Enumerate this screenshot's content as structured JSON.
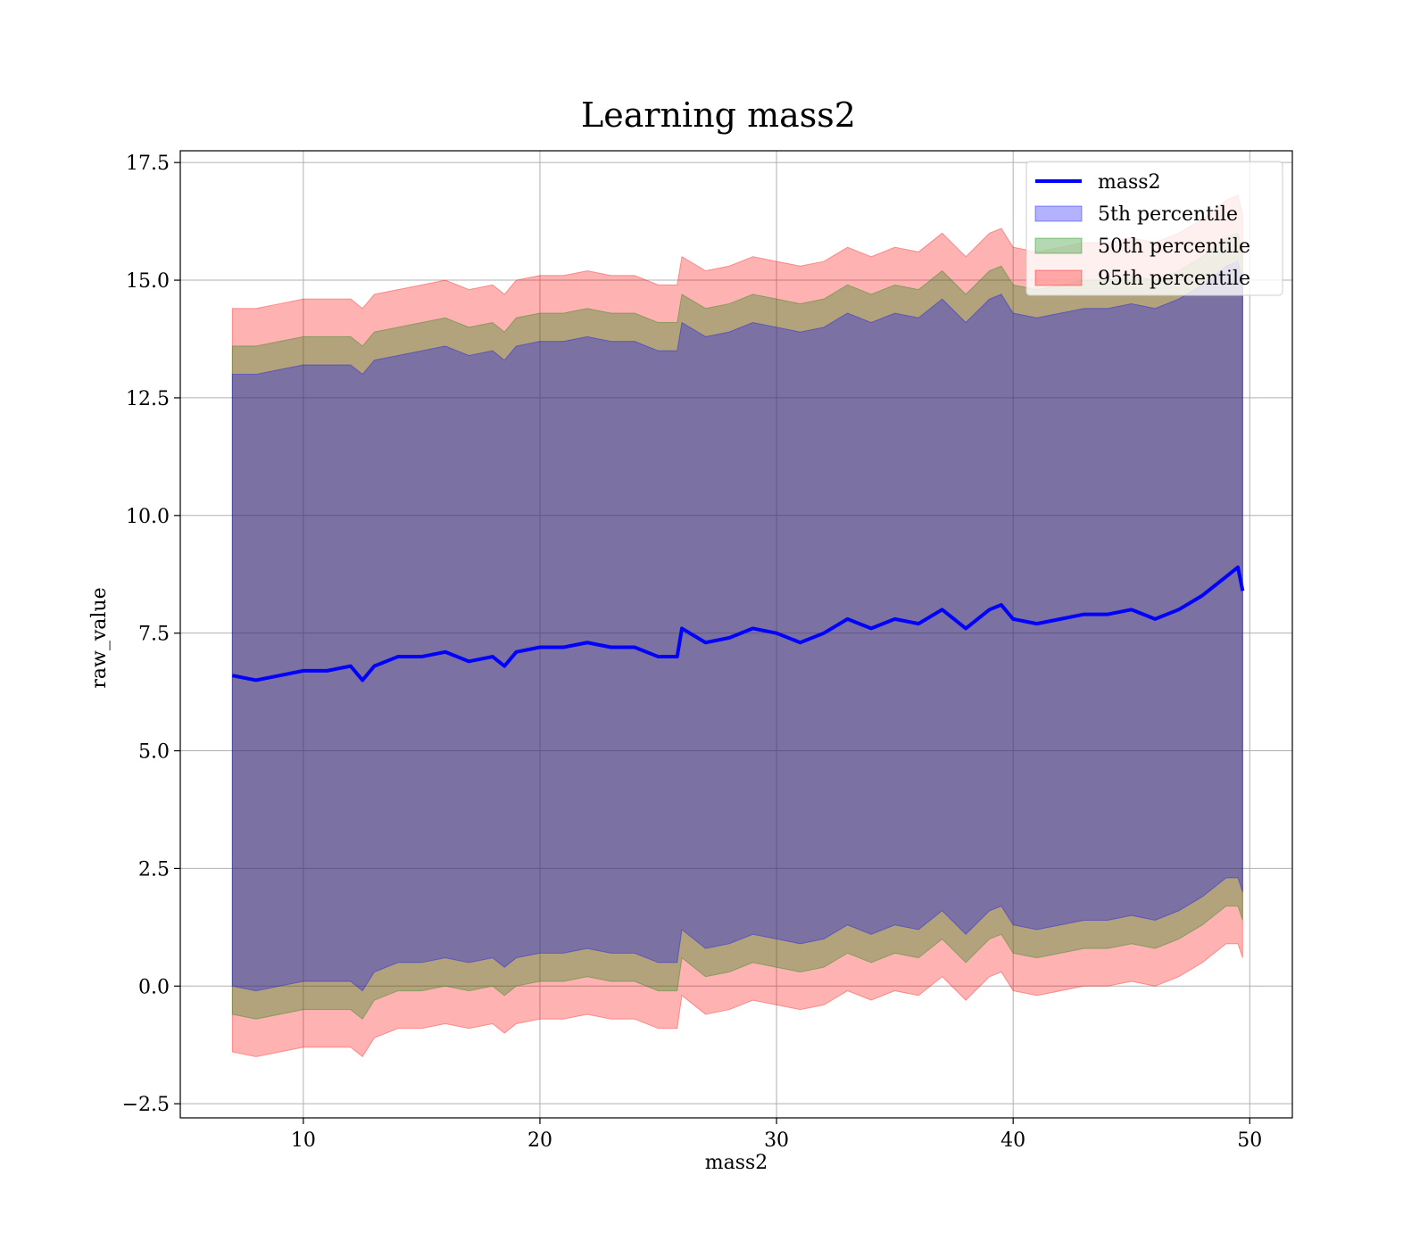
{
  "chart_data": {
    "type": "line",
    "title": "Learning mass2",
    "xlabel": "mass2",
    "ylabel": "raw_value",
    "xlim": [
      4.8,
      51.8
    ],
    "ylim": [
      -2.8,
      17.75
    ],
    "xticks": [
      10,
      20,
      30,
      40,
      50
    ],
    "xtick_labels": [
      "10",
      "20",
      "30",
      "40",
      "50"
    ],
    "yticks": [
      -2.5,
      0.0,
      2.5,
      5.0,
      7.5,
      10.0,
      12.5,
      15.0,
      17.5
    ],
    "ytick_labels": [
      "−2.5",
      "0.0",
      "2.5",
      "5.0",
      "7.5",
      "10.0",
      "12.5",
      "15.0",
      "17.5"
    ],
    "grid": true,
    "legend_position": "top-right",
    "legend": [
      {
        "label": "mass2",
        "kind": "line",
        "color": "#0000ff"
      },
      {
        "label": "5th percentile",
        "kind": "patch",
        "color": "#0000ff"
      },
      {
        "label": "50th percentile",
        "kind": "patch",
        "color": "#008000"
      },
      {
        "label": "95th percentile",
        "kind": "patch",
        "color": "#ff0000"
      }
    ],
    "x": [
      7.0,
      8.0,
      9.0,
      10.0,
      11.0,
      12.0,
      12.5,
      13.0,
      14.0,
      15.0,
      16.0,
      17.0,
      18.0,
      18.5,
      19.0,
      20.0,
      21.0,
      22.0,
      23.0,
      24.0,
      25.0,
      25.8,
      26.0,
      27.0,
      28.0,
      29.0,
      30.0,
      31.0,
      32.0,
      33.0,
      34.0,
      35.0,
      36.0,
      37.0,
      38.0,
      39.0,
      39.5,
      40.0,
      41.0,
      42.0,
      43.0,
      44.0,
      45.0,
      46.0,
      47.0,
      48.0,
      49.0,
      49.5,
      49.7
    ],
    "series": [
      {
        "name": "mass2",
        "type": "line",
        "color": "#0000ff",
        "values": [
          6.6,
          6.5,
          6.6,
          6.7,
          6.7,
          6.8,
          6.5,
          6.8,
          7.0,
          7.0,
          7.1,
          6.9,
          7.0,
          6.8,
          7.1,
          7.2,
          7.2,
          7.3,
          7.2,
          7.2,
          7.0,
          7.0,
          7.6,
          7.3,
          7.4,
          7.6,
          7.5,
          7.3,
          7.5,
          7.8,
          7.6,
          7.8,
          7.7,
          8.0,
          7.6,
          8.0,
          8.1,
          7.8,
          7.7,
          7.8,
          7.9,
          7.9,
          8.0,
          7.8,
          8.0,
          8.3,
          8.7,
          8.9,
          8.4
        ]
      },
      {
        "name": "5th percentile",
        "type": "band",
        "color": "#0000ff",
        "lower": [
          0.0,
          -0.1,
          0.0,
          0.1,
          0.1,
          0.1,
          -0.1,
          0.3,
          0.5,
          0.5,
          0.6,
          0.5,
          0.6,
          0.4,
          0.6,
          0.7,
          0.7,
          0.8,
          0.7,
          0.7,
          0.5,
          0.5,
          1.2,
          0.8,
          0.9,
          1.1,
          1.0,
          0.9,
          1.0,
          1.3,
          1.1,
          1.3,
          1.2,
          1.6,
          1.1,
          1.6,
          1.7,
          1.3,
          1.2,
          1.3,
          1.4,
          1.4,
          1.5,
          1.4,
          1.6,
          1.9,
          2.3,
          2.3,
          2.0
        ],
        "upper": [
          13.0,
          13.0,
          13.1,
          13.2,
          13.2,
          13.2,
          13.0,
          13.3,
          13.4,
          13.5,
          13.6,
          13.4,
          13.5,
          13.3,
          13.6,
          13.7,
          13.7,
          13.8,
          13.7,
          13.7,
          13.5,
          13.5,
          14.1,
          13.8,
          13.9,
          14.1,
          14.0,
          13.9,
          14.0,
          14.3,
          14.1,
          14.3,
          14.2,
          14.6,
          14.1,
          14.6,
          14.7,
          14.3,
          14.2,
          14.3,
          14.4,
          14.4,
          14.5,
          14.4,
          14.6,
          14.9,
          15.3,
          15.4,
          15.0
        ]
      },
      {
        "name": "50th percentile",
        "type": "band",
        "color": "#008000",
        "lower": [
          -0.6,
          -0.7,
          -0.6,
          -0.5,
          -0.5,
          -0.5,
          -0.7,
          -0.3,
          -0.1,
          -0.1,
          0.0,
          -0.1,
          0.0,
          -0.2,
          0.0,
          0.1,
          0.1,
          0.2,
          0.1,
          0.1,
          -0.1,
          -0.1,
          0.6,
          0.2,
          0.3,
          0.5,
          0.4,
          0.3,
          0.4,
          0.7,
          0.5,
          0.7,
          0.6,
          1.0,
          0.5,
          1.0,
          1.1,
          0.7,
          0.6,
          0.7,
          0.8,
          0.8,
          0.9,
          0.8,
          1.0,
          1.3,
          1.7,
          1.7,
          1.4
        ],
        "upper": [
          13.6,
          13.6,
          13.7,
          13.8,
          13.8,
          13.8,
          13.6,
          13.9,
          14.0,
          14.1,
          14.2,
          14.0,
          14.1,
          13.9,
          14.2,
          14.3,
          14.3,
          14.4,
          14.3,
          14.3,
          14.1,
          14.1,
          14.7,
          14.4,
          14.5,
          14.7,
          14.6,
          14.5,
          14.6,
          14.9,
          14.7,
          14.9,
          14.8,
          15.2,
          14.7,
          15.2,
          15.3,
          14.9,
          14.8,
          14.9,
          15.0,
          15.0,
          15.1,
          15.0,
          15.2,
          15.5,
          15.9,
          16.0,
          15.6
        ]
      },
      {
        "name": "95th percentile",
        "type": "band",
        "color": "#ff0000",
        "lower": [
          -1.4,
          -1.5,
          -1.4,
          -1.3,
          -1.3,
          -1.3,
          -1.5,
          -1.1,
          -0.9,
          -0.9,
          -0.8,
          -0.9,
          -0.8,
          -1.0,
          -0.8,
          -0.7,
          -0.7,
          -0.6,
          -0.7,
          -0.7,
          -0.9,
          -0.9,
          -0.2,
          -0.6,
          -0.5,
          -0.3,
          -0.4,
          -0.5,
          -0.4,
          -0.1,
          -0.3,
          -0.1,
          -0.2,
          0.2,
          -0.3,
          0.2,
          0.3,
          -0.1,
          -0.2,
          -0.1,
          0.0,
          0.0,
          0.1,
          0.0,
          0.2,
          0.5,
          0.9,
          0.9,
          0.6
        ],
        "upper": [
          14.4,
          14.4,
          14.5,
          14.6,
          14.6,
          14.6,
          14.4,
          14.7,
          14.8,
          14.9,
          15.0,
          14.8,
          14.9,
          14.7,
          15.0,
          15.1,
          15.1,
          15.2,
          15.1,
          15.1,
          14.9,
          14.9,
          15.5,
          15.2,
          15.3,
          15.5,
          15.4,
          15.3,
          15.4,
          15.7,
          15.5,
          15.7,
          15.6,
          16.0,
          15.5,
          16.0,
          16.1,
          15.7,
          15.6,
          15.7,
          15.8,
          15.8,
          15.9,
          15.8,
          16.0,
          16.3,
          16.7,
          16.8,
          16.4
        ]
      }
    ]
  }
}
